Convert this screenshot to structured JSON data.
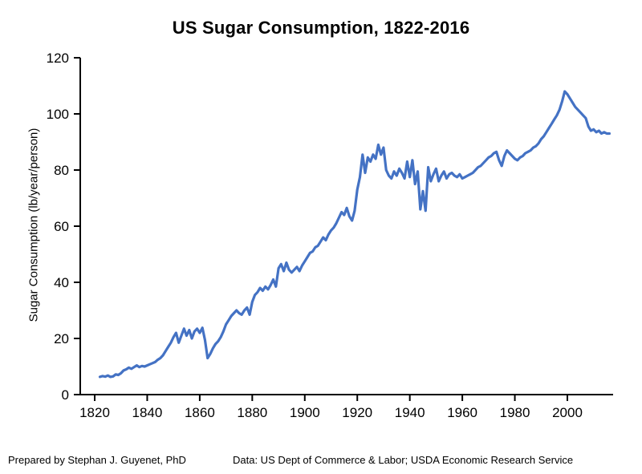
{
  "title": "US Sugar Consumption, 1822-2016",
  "y_axis_label": "Sugar Consumption (lb/year/person)",
  "footer": {
    "prepared_by": "Prepared by Stephan J. Guyenet, PhD",
    "source": "Data: US Dept of Commerce & Labor; USDA Economic Research Service"
  },
  "chart_data": {
    "type": "line",
    "title": "US Sugar Consumption, 1822-2016",
    "xlabel": "",
    "ylabel": "Sugar Consumption (lb/year/person)",
    "ylim": [
      0,
      120
    ],
    "xlim": [
      1815,
      2018
    ],
    "x_ticks": [
      1820,
      1840,
      1860,
      1880,
      1900,
      1920,
      1940,
      1960,
      1980,
      2000
    ],
    "y_ticks": [
      0,
      20,
      40,
      60,
      80,
      100,
      120
    ],
    "grid": false,
    "legend": "none",
    "line_color": "#4472C4",
    "axis_color": "#000000",
    "series": [
      {
        "name": "US sugar consumption (lb/year/person)",
        "x": [
          1822,
          1823,
          1824,
          1825,
          1826,
          1827,
          1828,
          1829,
          1830,
          1831,
          1832,
          1833,
          1834,
          1835,
          1836,
          1837,
          1838,
          1839,
          1840,
          1841,
          1842,
          1843,
          1844,
          1845,
          1846,
          1847,
          1848,
          1849,
          1850,
          1851,
          1852,
          1853,
          1854,
          1855,
          1856,
          1857,
          1858,
          1859,
          1860,
          1861,
          1862,
          1863,
          1864,
          1865,
          1866,
          1867,
          1868,
          1869,
          1870,
          1871,
          1872,
          1873,
          1874,
          1875,
          1876,
          1877,
          1878,
          1879,
          1880,
          1881,
          1882,
          1883,
          1884,
          1885,
          1886,
          1887,
          1888,
          1889,
          1890,
          1891,
          1892,
          1893,
          1894,
          1895,
          1896,
          1897,
          1898,
          1899,
          1900,
          1901,
          1902,
          1903,
          1904,
          1905,
          1906,
          1907,
          1908,
          1909,
          1910,
          1911,
          1912,
          1913,
          1914,
          1915,
          1916,
          1917,
          1918,
          1919,
          1920,
          1921,
          1922,
          1923,
          1924,
          1925,
          1926,
          1927,
          1928,
          1929,
          1930,
          1931,
          1932,
          1933,
          1934,
          1935,
          1936,
          1937,
          1938,
          1939,
          1940,
          1941,
          1942,
          1943,
          1944,
          1945,
          1946,
          1947,
          1948,
          1949,
          1950,
          1951,
          1952,
          1953,
          1954,
          1955,
          1956,
          1957,
          1958,
          1959,
          1960,
          1961,
          1962,
          1963,
          1964,
          1965,
          1966,
          1967,
          1968,
          1969,
          1970,
          1971,
          1972,
          1973,
          1974,
          1975,
          1976,
          1977,
          1978,
          1979,
          1980,
          1981,
          1982,
          1983,
          1984,
          1985,
          1986,
          1987,
          1988,
          1989,
          1990,
          1991,
          1992,
          1993,
          1994,
          1995,
          1996,
          1997,
          1998,
          1999,
          2000,
          2001,
          2002,
          2003,
          2004,
          2005,
          2006,
          2007,
          2008,
          2009,
          2010,
          2011,
          2012,
          2013,
          2014,
          2015,
          2016
        ],
        "values": [
          6.3,
          6.6,
          6.4,
          6.8,
          6.3,
          6.5,
          7.2,
          7.0,
          7.6,
          8.6,
          9.0,
          9.6,
          9.2,
          9.8,
          10.4,
          9.8,
          10.2,
          10.0,
          10.4,
          10.8,
          11.2,
          11.6,
          12.4,
          13.0,
          14.0,
          15.5,
          17.0,
          18.5,
          20.5,
          22.0,
          18.5,
          21.0,
          23.5,
          21.0,
          23.0,
          20.0,
          22.5,
          23.5,
          22.0,
          23.8,
          19.5,
          13.0,
          14.5,
          16.5,
          18.0,
          19.0,
          20.5,
          22.5,
          25.0,
          26.5,
          28.0,
          29.0,
          30.0,
          29.0,
          28.5,
          30.0,
          31.0,
          28.5,
          33.0,
          35.5,
          36.5,
          38.0,
          37.0,
          38.5,
          37.5,
          39.0,
          41.0,
          38.5,
          45.0,
          46.5,
          44.0,
          47.0,
          44.5,
          43.5,
          44.5,
          45.5,
          44.0,
          46.0,
          47.5,
          49.0,
          50.5,
          51.0,
          52.5,
          53.0,
          54.5,
          56.0,
          55.0,
          57.0,
          58.5,
          59.5,
          61.0,
          63.0,
          65.0,
          64.0,
          66.5,
          63.5,
          62.0,
          65.5,
          73.0,
          77.5,
          85.5,
          79.0,
          84.5,
          83.0,
          85.5,
          84.0,
          89.0,
          85.5,
          88.0,
          80.0,
          78.0,
          77.0,
          79.5,
          78.0,
          80.5,
          79.0,
          77.0,
          83.0,
          77.5,
          83.5,
          75.0,
          79.5,
          66.0,
          72.5,
          65.5,
          81.0,
          76.0,
          78.5,
          80.5,
          76.0,
          78.0,
          79.5,
          77.0,
          78.5,
          79.0,
          78.0,
          77.5,
          78.5,
          77.0,
          77.5,
          78.0,
          78.5,
          79.0,
          80.0,
          81.0,
          81.5,
          82.5,
          83.5,
          84.5,
          85.0,
          86.0,
          86.5,
          83.5,
          81.5,
          85.0,
          87.0,
          86.0,
          85.0,
          84.0,
          83.5,
          84.5,
          85.0,
          86.0,
          86.5,
          87.0,
          88.0,
          88.5,
          89.5,
          91.0,
          92.0,
          93.5,
          95.0,
          96.5,
          98.0,
          99.5,
          101.5,
          104.5,
          108.0,
          107.0,
          105.5,
          104.0,
          102.5,
          101.5,
          100.5,
          99.5,
          98.5,
          95.5,
          94.0,
          94.5,
          93.5,
          94.0,
          93.0,
          93.5,
          93.0,
          93.0
        ]
      }
    ]
  }
}
